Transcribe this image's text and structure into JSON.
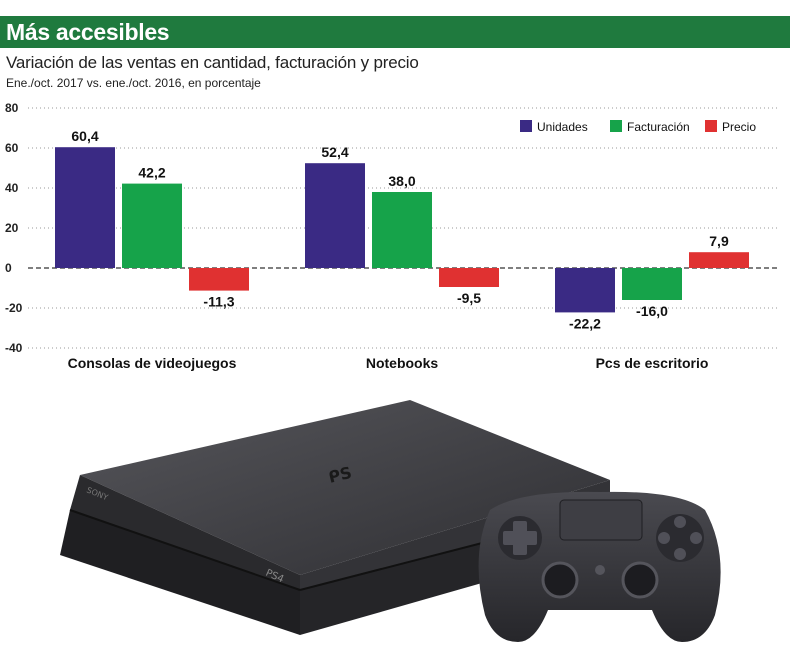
{
  "header": {
    "title": "Más accesibles"
  },
  "chart_data": {
    "type": "bar",
    "title": "Variación de las ventas en cantidad, facturación y precio",
    "subtitle": "Ene./oct. 2017 vs. ene./oct. 2016, en porcentaje",
    "categories": [
      "Consolas de videojuegos",
      "Notebooks",
      "Pcs de escritorio"
    ],
    "series": [
      {
        "name": "Unidades",
        "color": "#3a2a84",
        "values": [
          60.4,
          52.4,
          -22.2
        ],
        "labels": [
          "60,4",
          "52,4",
          "-22,2"
        ]
      },
      {
        "name": "Facturación",
        "color": "#16a34a",
        "values": [
          42.2,
          38.0,
          -16.0
        ],
        "labels": [
          "42,2",
          "38,0",
          "-16,0"
        ]
      },
      {
        "name": "Precio",
        "color": "#e03131",
        "values": [
          -11.3,
          -9.5,
          7.9
        ],
        "labels": [
          "-11,3",
          "-9,5",
          "7,9"
        ]
      }
    ],
    "yticks": [
      80,
      60,
      40,
      20,
      0,
      -20,
      -40
    ],
    "ylim": [
      -40,
      80
    ],
    "grid": true,
    "legend": "top-right"
  },
  "colors": {
    "header_bg": "#1f7a3e",
    "grid": "#9a9a9a",
    "console": "#3b3b3f"
  },
  "illustration": {
    "console_logo": "PS4",
    "console_brand": "SONY"
  }
}
